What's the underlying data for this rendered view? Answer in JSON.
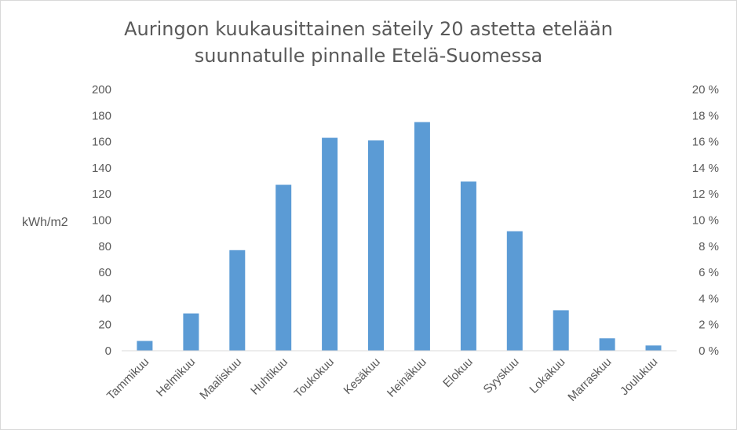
{
  "chart_data": {
    "type": "bar",
    "title_lines": [
      "Auringon kuukausittainen säteily 20 astetta etelään",
      "suunnatulle pinnalle Etelä-Suomessa"
    ],
    "ylabel": "kWh/m2",
    "categories": [
      "Tammikuu",
      "Helmikuu",
      "Maaliskuu",
      "Huhtikuu",
      "Toukokuu",
      "Kesäkuu",
      "Heinäkuu",
      "Elokuu",
      "Syyskuu",
      "Lokakuu",
      "Marraskuu",
      "Joulukuu"
    ],
    "values": [
      7.5,
      28.5,
      77,
      127,
      163,
      161,
      175,
      129.5,
      91.5,
      31,
      9.5,
      4
    ],
    "ylim": [
      0,
      200
    ],
    "y_ticks": [
      "0",
      "20",
      "40",
      "60",
      "80",
      "100",
      "120",
      "140",
      "160",
      "180",
      "200"
    ],
    "y2_ticks": [
      "0 %",
      "2 %",
      "4 %",
      "6 %",
      "8 %",
      "10 %",
      "12 %",
      "14 %",
      "16 %",
      "18 %",
      "20 %"
    ],
    "bar_color": "#5b9bd5",
    "grid": false,
    "legend": "none"
  }
}
